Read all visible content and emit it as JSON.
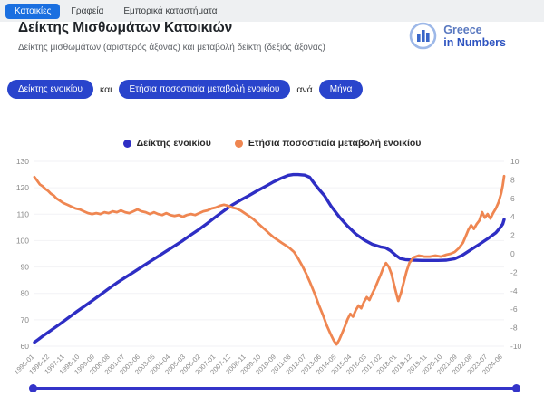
{
  "tabs": [
    {
      "label": "Κατοικίες",
      "active": true
    },
    {
      "label": "Γραφεία",
      "active": false
    },
    {
      "label": "Εμπορικά καταστήματα",
      "active": false
    }
  ],
  "header": {
    "title": "Δείκτης Μισθωμάτων Κατοικιών",
    "subtitle": "Δείκτης μισθωμάτων (αριστερός άξονας) και μεταβολή δείκτη (δεξιός άξονας)"
  },
  "logo": {
    "line1": "Greece",
    "line2": "in Numbers"
  },
  "controls": {
    "metric1": "Δείκτης ενοικίου",
    "conjunction": "και",
    "metric2": "Ετήσια ποσοστιαία μεταβολή ενοικίου",
    "per": "ανά",
    "period": "Μήνα"
  },
  "legend": [
    {
      "label": "Δείκτης ενοικίου",
      "color": "#2e2ec4"
    },
    {
      "label": "Ετήσια ποσοστιαία μεταβολή ενοικίου",
      "color": "#ef8651"
    }
  ],
  "colors": {
    "active_tab": "#1a6fe0",
    "pill_blue": "#2944cc",
    "line_blue": "#2e2ec4",
    "line_orange": "#ef8651",
    "slider_blue": "#3434c9"
  },
  "chart_data": {
    "type": "line",
    "title": "Δείκτης Μισθωμάτων Κατοικιών",
    "legend_position": "top",
    "grid": false,
    "x_range": [
      1996.0,
      2024.5
    ],
    "x_tick_labels": [
      "1996-01",
      "1996-12",
      "1997-11",
      "1998-10",
      "1999-09",
      "2000-08",
      "2001-07",
      "2002-06",
      "2003-05",
      "2004-04",
      "2005-03",
      "2006-02",
      "2007-01",
      "2007-12",
      "2008-11",
      "2009-10",
      "2010-09",
      "2011-08",
      "2012-07",
      "2013-06",
      "2014-05",
      "2015-04",
      "2016-03",
      "2017-02",
      "2018-01",
      "2018-12",
      "2019-11",
      "2020-10",
      "2021-09",
      "2022-08",
      "2023-07",
      "2024-06"
    ],
    "left_axis": {
      "label": "Δείκτης ενοικίου",
      "range": [
        60,
        130
      ],
      "ticks": [
        130,
        120,
        110,
        100,
        90,
        80,
        70,
        60
      ]
    },
    "right_axis": {
      "label": "Ετήσια ποσοστιαία μεταβολή ενοικίου",
      "range": [
        -10,
        10
      ],
      "ticks": [
        10,
        8,
        6,
        4,
        2,
        0,
        -2,
        -4,
        -6,
        -8,
        -10
      ]
    },
    "series": [
      {
        "name": "Δείκτης ενοικίου",
        "axis": "left",
        "color": "#2e2ec4",
        "points": [
          [
            1996.0,
            61.5
          ],
          [
            1996.25,
            62.6
          ],
          [
            1996.5,
            63.8
          ],
          [
            1996.75,
            64.9
          ],
          [
            1997.0,
            66.0
          ],
          [
            1997.5,
            68.2
          ],
          [
            1998.0,
            70.5
          ],
          [
            1998.5,
            72.8
          ],
          [
            1999.0,
            75.0
          ],
          [
            1999.5,
            77.2
          ],
          [
            2000.0,
            79.5
          ],
          [
            2000.5,
            81.8
          ],
          [
            2001.0,
            84.0
          ],
          [
            2001.5,
            86.0
          ],
          [
            2002.0,
            88.0
          ],
          [
            2002.5,
            90.0
          ],
          [
            2003.0,
            92.0
          ],
          [
            2003.5,
            94.0
          ],
          [
            2004.0,
            96.0
          ],
          [
            2004.5,
            98.0
          ],
          [
            2005.0,
            100.0
          ],
          [
            2005.5,
            102.2
          ],
          [
            2006.0,
            104.3
          ],
          [
            2006.5,
            106.6
          ],
          [
            2007.0,
            109.0
          ],
          [
            2007.5,
            111.3
          ],
          [
            2008.0,
            113.5
          ],
          [
            2008.5,
            115.3
          ],
          [
            2009.0,
            117.0
          ],
          [
            2009.5,
            118.8
          ],
          [
            2010.0,
            120.5
          ],
          [
            2010.5,
            122.2
          ],
          [
            2011.0,
            123.7
          ],
          [
            2011.4,
            124.7
          ],
          [
            2011.7,
            125.0
          ],
          [
            2012.0,
            125.0
          ],
          [
            2012.4,
            124.8
          ],
          [
            2012.7,
            124.0
          ],
          [
            2013.0,
            121.5
          ],
          [
            2013.3,
            119.2
          ],
          [
            2013.6,
            117.0
          ],
          [
            2014.0,
            113.0
          ],
          [
            2014.5,
            109.0
          ],
          [
            2015.0,
            105.5
          ],
          [
            2015.5,
            102.5
          ],
          [
            2016.0,
            100.3
          ],
          [
            2016.5,
            98.6
          ],
          [
            2017.0,
            97.6
          ],
          [
            2017.3,
            97.3
          ],
          [
            2017.6,
            96.2
          ],
          [
            2017.9,
            94.6
          ],
          [
            2018.2,
            93.2
          ],
          [
            2018.5,
            92.8
          ],
          [
            2019.0,
            92.6
          ],
          [
            2019.5,
            92.5
          ],
          [
            2020.0,
            92.5
          ],
          [
            2020.5,
            92.5
          ],
          [
            2021.0,
            92.6
          ],
          [
            2021.5,
            93.1
          ],
          [
            2022.0,
            94.6
          ],
          [
            2022.5,
            96.6
          ],
          [
            2023.0,
            98.6
          ],
          [
            2023.5,
            100.7
          ],
          [
            2024.0,
            103.0
          ],
          [
            2024.25,
            104.8
          ],
          [
            2024.42,
            106.3
          ],
          [
            2024.5,
            108.0
          ]
        ]
      },
      {
        "name": "Ετήσια ποσοστιαία μεταβολή ενοικίου",
        "axis": "right",
        "color": "#ef8651",
        "points": [
          [
            1996.0,
            8.3
          ],
          [
            1996.17,
            7.9
          ],
          [
            1996.33,
            7.5
          ],
          [
            1996.5,
            7.3
          ],
          [
            1996.67,
            7.0
          ],
          [
            1996.83,
            6.8
          ],
          [
            1997.0,
            6.5
          ],
          [
            1997.17,
            6.3
          ],
          [
            1997.33,
            6.0
          ],
          [
            1997.5,
            5.8
          ],
          [
            1997.75,
            5.5
          ],
          [
            1998.0,
            5.3
          ],
          [
            1998.25,
            5.1
          ],
          [
            1998.5,
            4.9
          ],
          [
            1998.75,
            4.8
          ],
          [
            1999.0,
            4.6
          ],
          [
            1999.25,
            4.4
          ],
          [
            1999.5,
            4.3
          ],
          [
            1999.75,
            4.4
          ],
          [
            2000.0,
            4.3
          ],
          [
            2000.25,
            4.5
          ],
          [
            2000.5,
            4.4
          ],
          [
            2000.75,
            4.6
          ],
          [
            2001.0,
            4.5
          ],
          [
            2001.25,
            4.7
          ],
          [
            2001.5,
            4.5
          ],
          [
            2001.75,
            4.4
          ],
          [
            2002.0,
            4.6
          ],
          [
            2002.25,
            4.8
          ],
          [
            2002.5,
            4.6
          ],
          [
            2002.75,
            4.5
          ],
          [
            2003.0,
            4.3
          ],
          [
            2003.25,
            4.5
          ],
          [
            2003.5,
            4.3
          ],
          [
            2003.75,
            4.2
          ],
          [
            2004.0,
            4.4
          ],
          [
            2004.25,
            4.2
          ],
          [
            2004.5,
            4.1
          ],
          [
            2004.75,
            4.2
          ],
          [
            2005.0,
            4.0
          ],
          [
            2005.25,
            4.2
          ],
          [
            2005.5,
            4.3
          ],
          [
            2005.75,
            4.2
          ],
          [
            2006.0,
            4.4
          ],
          [
            2006.25,
            4.6
          ],
          [
            2006.5,
            4.7
          ],
          [
            2006.75,
            4.9
          ],
          [
            2007.0,
            5.0
          ],
          [
            2007.25,
            5.2
          ],
          [
            2007.5,
            5.3
          ],
          [
            2007.75,
            5.2
          ],
          [
            2008.0,
            5.0
          ],
          [
            2008.25,
            4.9
          ],
          [
            2008.5,
            4.7
          ],
          [
            2008.75,
            4.4
          ],
          [
            2009.0,
            4.1
          ],
          [
            2009.25,
            3.8
          ],
          [
            2009.5,
            3.4
          ],
          [
            2009.75,
            3.0
          ],
          [
            2010.0,
            2.6
          ],
          [
            2010.25,
            2.2
          ],
          [
            2010.5,
            1.8
          ],
          [
            2010.75,
            1.5
          ],
          [
            2011.0,
            1.2
          ],
          [
            2011.25,
            0.9
          ],
          [
            2011.5,
            0.6
          ],
          [
            2011.75,
            0.2
          ],
          [
            2012.0,
            -0.5
          ],
          [
            2012.25,
            -1.3
          ],
          [
            2012.5,
            -2.2
          ],
          [
            2012.75,
            -3.2
          ],
          [
            2013.0,
            -4.3
          ],
          [
            2013.25,
            -5.5
          ],
          [
            2013.5,
            -6.6
          ],
          [
            2013.75,
            -7.8
          ],
          [
            2014.0,
            -8.8
          ],
          [
            2014.17,
            -9.4
          ],
          [
            2014.33,
            -9.8
          ],
          [
            2014.5,
            -9.3
          ],
          [
            2014.67,
            -8.6
          ],
          [
            2014.83,
            -7.9
          ],
          [
            2015.0,
            -7.1
          ],
          [
            2015.17,
            -6.5
          ],
          [
            2015.33,
            -6.8
          ],
          [
            2015.5,
            -6.1
          ],
          [
            2015.67,
            -5.6
          ],
          [
            2015.83,
            -5.9
          ],
          [
            2016.0,
            -5.2
          ],
          [
            2016.17,
            -4.7
          ],
          [
            2016.33,
            -5.0
          ],
          [
            2016.5,
            -4.3
          ],
          [
            2016.67,
            -3.7
          ],
          [
            2016.83,
            -3.0
          ],
          [
            2017.0,
            -2.3
          ],
          [
            2017.17,
            -1.5
          ],
          [
            2017.33,
            -1.0
          ],
          [
            2017.5,
            -1.4
          ],
          [
            2017.67,
            -2.2
          ],
          [
            2017.83,
            -3.4
          ],
          [
            2018.0,
            -4.6
          ],
          [
            2018.08,
            -5.1
          ],
          [
            2018.25,
            -4.2
          ],
          [
            2018.42,
            -3.0
          ],
          [
            2018.58,
            -1.9
          ],
          [
            2018.75,
            -1.0
          ],
          [
            2019.0,
            -0.4
          ],
          [
            2019.33,
            -0.2
          ],
          [
            2019.67,
            -0.3
          ],
          [
            2020.0,
            -0.3
          ],
          [
            2020.33,
            -0.2
          ],
          [
            2020.67,
            -0.3
          ],
          [
            2021.0,
            -0.1
          ],
          [
            2021.25,
            0.0
          ],
          [
            2021.5,
            0.2
          ],
          [
            2021.75,
            0.6
          ],
          [
            2022.0,
            1.2
          ],
          [
            2022.17,
            1.9
          ],
          [
            2022.33,
            2.6
          ],
          [
            2022.5,
            3.1
          ],
          [
            2022.67,
            2.7
          ],
          [
            2022.83,
            3.2
          ],
          [
            2023.0,
            3.6
          ],
          [
            2023.17,
            4.5
          ],
          [
            2023.33,
            3.9
          ],
          [
            2023.5,
            4.3
          ],
          [
            2023.67,
            3.8
          ],
          [
            2023.83,
            4.4
          ],
          [
            2024.0,
            4.9
          ],
          [
            2024.17,
            5.6
          ],
          [
            2024.33,
            6.6
          ],
          [
            2024.42,
            7.4
          ],
          [
            2024.5,
            8.4
          ]
        ]
      }
    ]
  }
}
